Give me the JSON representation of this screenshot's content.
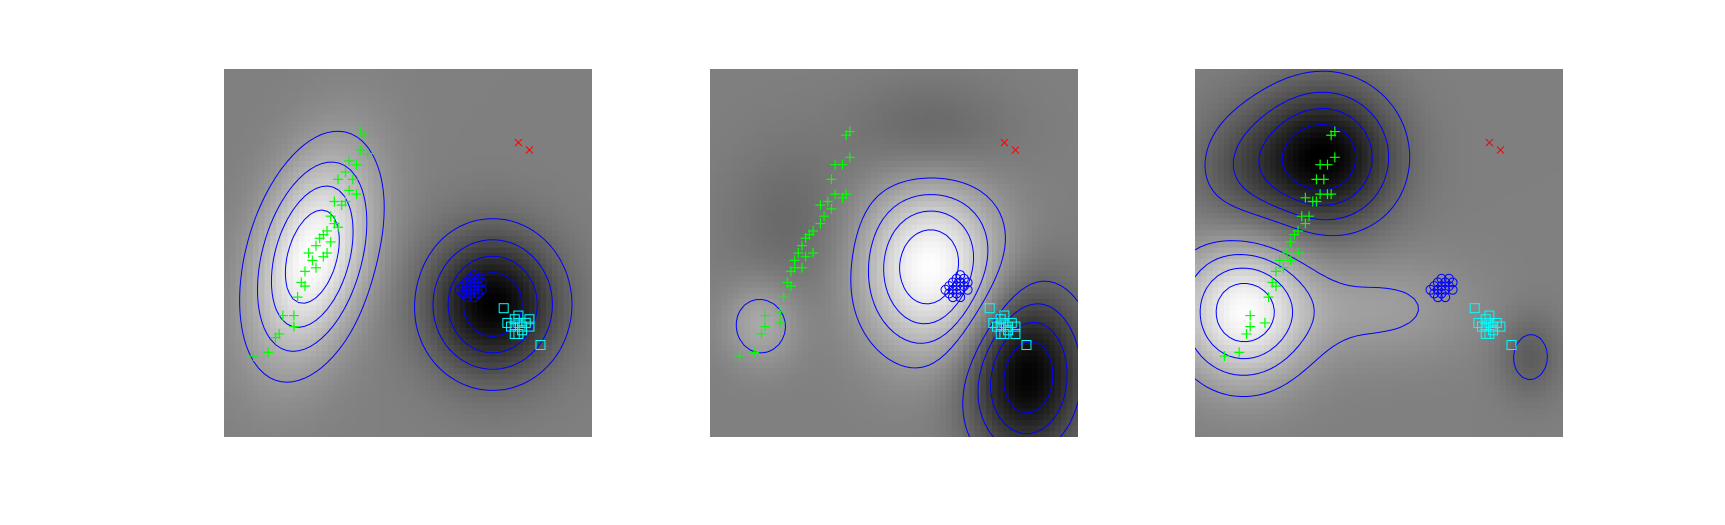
{
  "figure": {
    "background": "#ffffff"
  },
  "colors": {
    "class_plus": "#00ff00",
    "class_circle": "#0000ff",
    "class_square": "#00ffff",
    "class_x": "#ff0000",
    "contour": "#0000ff",
    "field_low": "#000000",
    "field_high": "#ffffff"
  },
  "chart_data": [
    {
      "type": "scatter",
      "title": "",
      "xlabel": "",
      "ylabel": "",
      "xlim": [
        0,
        1
      ],
      "ylim": [
        0,
        1
      ],
      "grid": false,
      "legend": "none",
      "background_field": "grayscale",
      "field_bumps": [
        {
          "cx": 0.24,
          "cy": 0.49,
          "sx": 0.11,
          "sy": 0.19,
          "rho": 0.35,
          "amp": 1.0
        },
        {
          "cx": 0.73,
          "cy": 0.36,
          "sx": 0.12,
          "sy": 0.13,
          "rho": 0.0,
          "amp": -1.0
        }
      ],
      "contour_levels": [
        -0.8,
        -0.6,
        -0.4,
        -0.2,
        0.2,
        0.4,
        0.6,
        0.8
      ],
      "series": [
        {
          "marker": "plus",
          "color": "#00ff00",
          "points": [
            [
              0.08,
              0.22
            ],
            [
              0.12,
              0.23
            ],
            [
              0.14,
              0.27
            ],
            [
              0.15,
              0.28
            ],
            [
              0.16,
              0.33
            ],
            [
              0.19,
              0.33
            ],
            [
              0.19,
              0.3
            ],
            [
              0.2,
              0.38
            ],
            [
              0.21,
              0.42
            ],
            [
              0.22,
              0.41
            ],
            [
              0.22,
              0.45
            ],
            [
              0.23,
              0.5
            ],
            [
              0.24,
              0.48
            ],
            [
              0.25,
              0.46
            ],
            [
              0.25,
              0.52
            ],
            [
              0.26,
              0.54
            ],
            [
              0.27,
              0.49
            ],
            [
              0.27,
              0.55
            ],
            [
              0.28,
              0.5
            ],
            [
              0.28,
              0.56
            ],
            [
              0.29,
              0.6
            ],
            [
              0.29,
              0.53
            ],
            [
              0.3,
              0.58
            ],
            [
              0.31,
              0.57
            ],
            [
              0.32,
              0.63
            ],
            [
              0.3,
              0.64
            ],
            [
              0.33,
              0.64
            ],
            [
              0.34,
              0.67
            ],
            [
              0.31,
              0.7
            ],
            [
              0.33,
              0.72
            ],
            [
              0.35,
              0.7
            ],
            [
              0.36,
              0.66
            ],
            [
              0.37,
              0.78
            ],
            [
              0.34,
              0.75
            ],
            [
              0.36,
              0.74
            ],
            [
              0.38,
              0.82
            ],
            [
              0.39,
              0.77
            ],
            [
              0.37,
              0.83
            ]
          ]
        },
        {
          "marker": "circle",
          "color": "#0000ff",
          "points": [
            [
              0.64,
              0.4
            ],
            [
              0.65,
              0.41
            ],
            [
              0.65,
              0.39
            ],
            [
              0.66,
              0.42
            ],
            [
              0.66,
              0.4
            ],
            [
              0.67,
              0.41
            ],
            [
              0.67,
              0.39
            ],
            [
              0.67,
              0.43
            ],
            [
              0.68,
              0.4
            ],
            [
              0.68,
              0.42
            ],
            [
              0.68,
              0.38
            ],
            [
              0.69,
              0.41
            ],
            [
              0.69,
              0.43
            ],
            [
              0.7,
              0.42
            ],
            [
              0.7,
              0.4
            ],
            [
              0.66,
              0.38
            ],
            [
              0.68,
              0.44
            ],
            [
              0.69,
              0.39
            ]
          ]
        },
        {
          "marker": "square",
          "color": "#00ffff",
          "points": [
            [
              0.76,
              0.35
            ],
            [
              0.77,
              0.31
            ],
            [
              0.78,
              0.3
            ],
            [
              0.79,
              0.3
            ],
            [
              0.79,
              0.32
            ],
            [
              0.8,
              0.28
            ],
            [
              0.8,
              0.31
            ],
            [
              0.8,
              0.33
            ],
            [
              0.81,
              0.29
            ],
            [
              0.81,
              0.3
            ],
            [
              0.82,
              0.31
            ],
            [
              0.83,
              0.3
            ],
            [
              0.83,
              0.32
            ],
            [
              0.79,
              0.28
            ],
            [
              0.86,
              0.25
            ]
          ]
        },
        {
          "marker": "x",
          "color": "#ff0000",
          "points": [
            [
              0.8,
              0.8
            ],
            [
              0.83,
              0.78
            ]
          ]
        }
      ]
    },
    {
      "type": "scatter",
      "title": "",
      "xlabel": "",
      "ylabel": "",
      "xlim": [
        0,
        1
      ],
      "ylim": [
        0,
        1
      ],
      "grid": false,
      "legend": "none",
      "background_field": "grayscale",
      "field_bumps": [
        {
          "cx": 0.6,
          "cy": 0.46,
          "sx": 0.13,
          "sy": 0.16,
          "rho": 0.0,
          "amp": 1.0
        },
        {
          "cx": 0.86,
          "cy": 0.17,
          "sx": 0.11,
          "sy": 0.16,
          "rho": 0.0,
          "amp": -1.0
        },
        {
          "cx": 0.14,
          "cy": 0.31,
          "sx": 0.07,
          "sy": 0.08,
          "rho": 0.0,
          "amp": 0.35
        },
        {
          "cx": 0.6,
          "cy": 0.82,
          "sx": 0.15,
          "sy": 0.1,
          "rho": 0.0,
          "amp": -0.22
        },
        {
          "cx": 0.22,
          "cy": 0.58,
          "sx": 0.12,
          "sy": 0.15,
          "rho": 0.0,
          "amp": -0.18
        }
      ],
      "contour_levels": [
        -0.8,
        -0.6,
        -0.4,
        -0.2,
        0.2,
        0.4,
        0.6,
        0.8
      ],
      "series": [
        {
          "marker": "plus",
          "color": "#00ff00",
          "points": [
            [
              0.08,
              0.22
            ],
            [
              0.12,
              0.23
            ],
            [
              0.14,
              0.28
            ],
            [
              0.15,
              0.3
            ],
            [
              0.15,
              0.33
            ],
            [
              0.19,
              0.31
            ],
            [
              0.2,
              0.38
            ],
            [
              0.19,
              0.34
            ],
            [
              0.21,
              0.42
            ],
            [
              0.22,
              0.41
            ],
            [
              0.22,
              0.45
            ],
            [
              0.23,
              0.48
            ],
            [
              0.23,
              0.46
            ],
            [
              0.24,
              0.5
            ],
            [
              0.25,
              0.46
            ],
            [
              0.25,
              0.52
            ],
            [
              0.26,
              0.49
            ],
            [
              0.26,
              0.54
            ],
            [
              0.27,
              0.55
            ],
            [
              0.28,
              0.5
            ],
            [
              0.28,
              0.56
            ],
            [
              0.3,
              0.58
            ],
            [
              0.31,
              0.6
            ],
            [
              0.3,
              0.63
            ],
            [
              0.32,
              0.64
            ],
            [
              0.33,
              0.62
            ],
            [
              0.34,
              0.66
            ],
            [
              0.33,
              0.7
            ],
            [
              0.36,
              0.65
            ],
            [
              0.37,
              0.66
            ],
            [
              0.34,
              0.74
            ],
            [
              0.36,
              0.74
            ],
            [
              0.38,
              0.76
            ],
            [
              0.37,
              0.82
            ],
            [
              0.38,
              0.83
            ]
          ]
        },
        {
          "marker": "circle",
          "color": "#0000ff",
          "points": [
            [
              0.64,
              0.4
            ],
            [
              0.65,
              0.41
            ],
            [
              0.65,
              0.39
            ],
            [
              0.66,
              0.42
            ],
            [
              0.66,
              0.4
            ],
            [
              0.67,
              0.41
            ],
            [
              0.67,
              0.39
            ],
            [
              0.67,
              0.43
            ],
            [
              0.68,
              0.4
            ],
            [
              0.68,
              0.42
            ],
            [
              0.68,
              0.38
            ],
            [
              0.69,
              0.41
            ],
            [
              0.69,
              0.43
            ],
            [
              0.7,
              0.42
            ],
            [
              0.7,
              0.4
            ],
            [
              0.66,
              0.38
            ],
            [
              0.68,
              0.44
            ]
          ]
        },
        {
          "marker": "square",
          "color": "#00ffff",
          "points": [
            [
              0.76,
              0.35
            ],
            [
              0.77,
              0.31
            ],
            [
              0.78,
              0.3
            ],
            [
              0.79,
              0.3
            ],
            [
              0.79,
              0.32
            ],
            [
              0.8,
              0.28
            ],
            [
              0.8,
              0.31
            ],
            [
              0.8,
              0.33
            ],
            [
              0.81,
              0.29
            ],
            [
              0.81,
              0.3
            ],
            [
              0.82,
              0.31
            ],
            [
              0.83,
              0.3
            ],
            [
              0.83,
              0.28
            ],
            [
              0.79,
              0.28
            ],
            [
              0.86,
              0.25
            ]
          ]
        },
        {
          "marker": "x",
          "color": "#ff0000",
          "points": [
            [
              0.8,
              0.8
            ],
            [
              0.83,
              0.78
            ]
          ]
        }
      ]
    },
    {
      "type": "scatter",
      "title": "",
      "xlabel": "",
      "ylabel": "",
      "xlim": [
        0,
        1
      ],
      "ylim": [
        0,
        1
      ],
      "grid": false,
      "legend": "none",
      "background_field": "grayscale",
      "field_bumps": [
        {
          "cx": 0.35,
          "cy": 0.76,
          "sx": 0.13,
          "sy": 0.13,
          "rho": 0.0,
          "amp": -1.0
        },
        {
          "cx": 0.13,
          "cy": 0.34,
          "sx": 0.12,
          "sy": 0.13,
          "rho": 0.0,
          "amp": 0.95
        },
        {
          "cx": 0.91,
          "cy": 0.22,
          "sx": 0.06,
          "sy": 0.08,
          "rho": 0.0,
          "amp": -0.28
        },
        {
          "cx": 0.5,
          "cy": 0.35,
          "sx": 0.18,
          "sy": 0.1,
          "rho": 0.0,
          "amp": 0.24
        },
        {
          "cx": 0.12,
          "cy": 0.72,
          "sx": 0.1,
          "sy": 0.12,
          "rho": 0.0,
          "amp": -0.25
        }
      ],
      "contour_levels": [
        -0.8,
        -0.6,
        -0.4,
        -0.2,
        0.2,
        0.4,
        0.6,
        0.8
      ],
      "series": [
        {
          "marker": "plus",
          "color": "#00ff00",
          "points": [
            [
              0.08,
              0.22
            ],
            [
              0.12,
              0.23
            ],
            [
              0.14,
              0.28
            ],
            [
              0.15,
              0.3
            ],
            [
              0.15,
              0.33
            ],
            [
              0.19,
              0.31
            ],
            [
              0.2,
              0.38
            ],
            [
              0.21,
              0.42
            ],
            [
              0.22,
              0.45
            ],
            [
              0.22,
              0.41
            ],
            [
              0.23,
              0.48
            ],
            [
              0.24,
              0.46
            ],
            [
              0.25,
              0.5
            ],
            [
              0.26,
              0.53
            ],
            [
              0.26,
              0.48
            ],
            [
              0.27,
              0.55
            ],
            [
              0.28,
              0.5
            ],
            [
              0.28,
              0.56
            ],
            [
              0.29,
              0.6
            ],
            [
              0.3,
              0.58
            ],
            [
              0.31,
              0.6
            ],
            [
              0.32,
              0.64
            ],
            [
              0.3,
              0.65
            ],
            [
              0.33,
              0.64
            ],
            [
              0.34,
              0.66
            ],
            [
              0.33,
              0.7
            ],
            [
              0.35,
              0.7
            ],
            [
              0.36,
              0.66
            ],
            [
              0.37,
              0.66
            ],
            [
              0.34,
              0.74
            ],
            [
              0.36,
              0.74
            ],
            [
              0.38,
              0.76
            ],
            [
              0.37,
              0.82
            ],
            [
              0.38,
              0.83
            ]
          ]
        },
        {
          "marker": "circle",
          "color": "#0000ff",
          "points": [
            [
              0.64,
              0.4
            ],
            [
              0.65,
              0.41
            ],
            [
              0.65,
              0.39
            ],
            [
              0.66,
              0.42
            ],
            [
              0.66,
              0.4
            ],
            [
              0.67,
              0.41
            ],
            [
              0.67,
              0.39
            ],
            [
              0.67,
              0.43
            ],
            [
              0.68,
              0.4
            ],
            [
              0.68,
              0.42
            ],
            [
              0.68,
              0.38
            ],
            [
              0.69,
              0.41
            ],
            [
              0.69,
              0.43
            ],
            [
              0.7,
              0.42
            ],
            [
              0.7,
              0.4
            ],
            [
              0.66,
              0.38
            ]
          ]
        },
        {
          "marker": "square",
          "color": "#00ffff",
          "points": [
            [
              0.76,
              0.35
            ],
            [
              0.77,
              0.31
            ],
            [
              0.78,
              0.3
            ],
            [
              0.79,
              0.3
            ],
            [
              0.79,
              0.32
            ],
            [
              0.8,
              0.28
            ],
            [
              0.8,
              0.31
            ],
            [
              0.8,
              0.33
            ],
            [
              0.81,
              0.29
            ],
            [
              0.81,
              0.3
            ],
            [
              0.82,
              0.31
            ],
            [
              0.83,
              0.3
            ],
            [
              0.79,
              0.28
            ],
            [
              0.86,
              0.25
            ]
          ]
        },
        {
          "marker": "x",
          "color": "#ff0000",
          "points": [
            [
              0.8,
              0.8
            ],
            [
              0.83,
              0.78
            ]
          ]
        }
      ]
    }
  ]
}
